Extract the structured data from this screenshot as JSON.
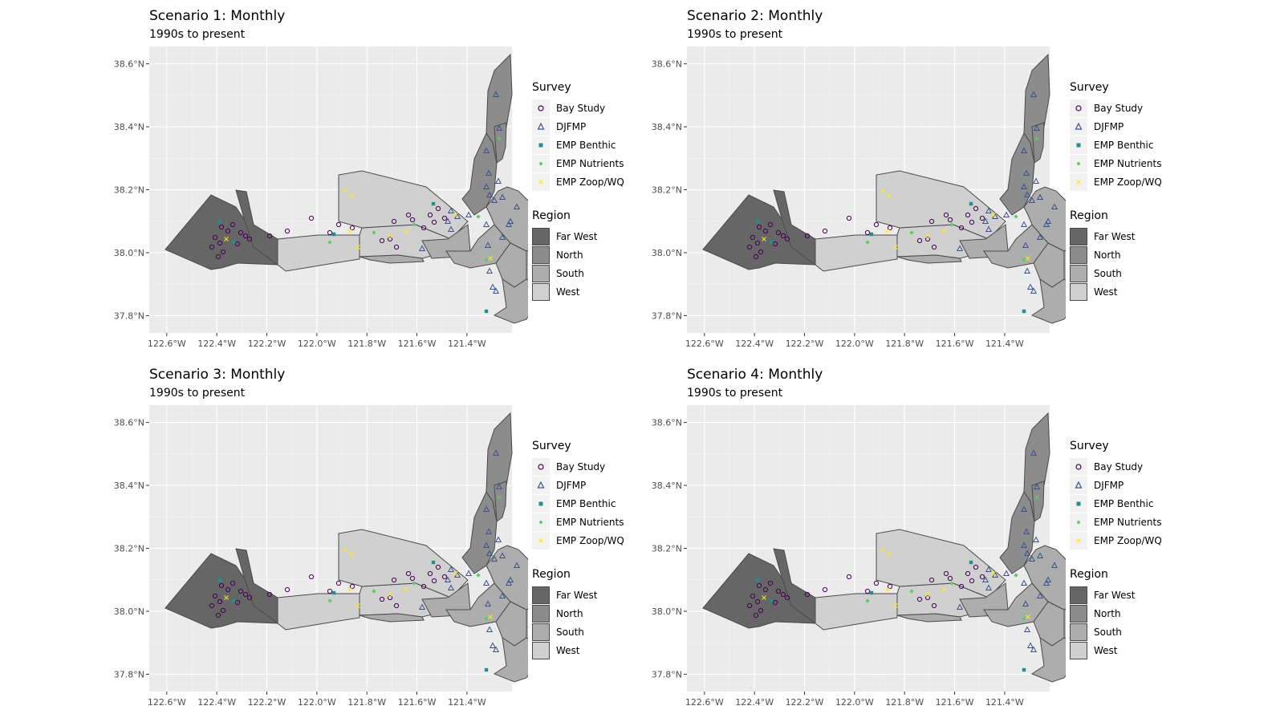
{
  "map_data": {
    "x_ticks": [
      "122.6°W",
      "122.4°W",
      "122.2°W",
      "122.0°W",
      "121.8°W",
      "121.6°W",
      "121.4°W"
    ],
    "y_ticks": [
      "38.6°N",
      "38.4°N",
      "38.2°N",
      "38.0°N",
      "37.8°N"
    ],
    "x_tick_values": [
      -122.6,
      -122.4,
      -122.2,
      -122.0,
      -121.8,
      -121.6,
      -121.4
    ],
    "y_tick_values": [
      38.6,
      38.4,
      38.2,
      38.0,
      37.8
    ],
    "xlim": [
      -122.67,
      -121.22
    ],
    "ylim": [
      37.745,
      38.655
    ],
    "grid": true
  },
  "panels": [
    {
      "title": "Scenario 1: Monthly",
      "subtitle": "1990s to present"
    },
    {
      "title": "Scenario 2: Monthly",
      "subtitle": "1990s to present"
    },
    {
      "title": "Scenario 3: Monthly",
      "subtitle": "1990s to present"
    },
    {
      "title": "Scenario 4: Monthly",
      "subtitle": "1990s to present"
    }
  ],
  "legend": {
    "survey_title": "Survey",
    "survey_items": [
      {
        "label": "Bay Study",
        "shape": "circle",
        "color": "#440154"
      },
      {
        "label": "DJFMP",
        "shape": "triangle",
        "color": "#3b528b"
      },
      {
        "label": "EMP Benthic",
        "shape": "square",
        "color": "#21908c"
      },
      {
        "label": "EMP Nutrients",
        "shape": "diamond",
        "color": "#5dc963"
      },
      {
        "label": "EMP Zoop/WQ",
        "shape": "x",
        "color": "#fde725"
      }
    ],
    "region_title": "Region",
    "region_items": [
      {
        "label": "Far West",
        "color": "#666666"
      },
      {
        "label": "North",
        "color": "#8c8c8c"
      },
      {
        "label": "South",
        "color": "#adadad"
      },
      {
        "label": "West",
        "color": "#d0d0d0"
      }
    ]
  }
}
